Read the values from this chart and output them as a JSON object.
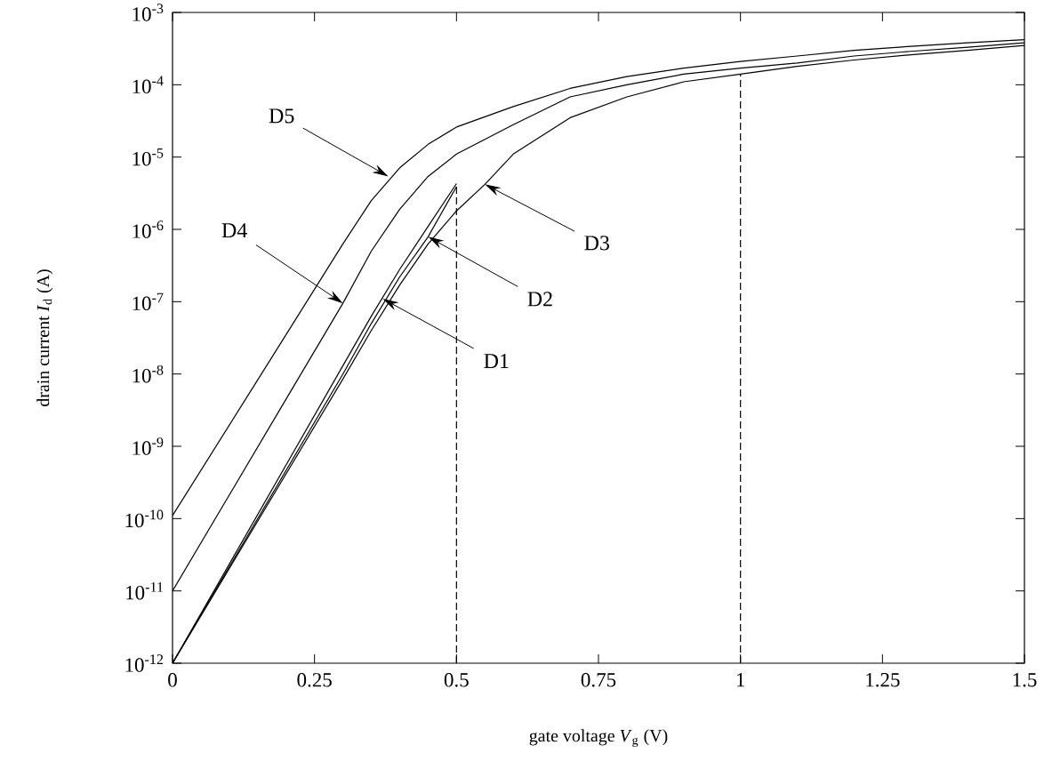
{
  "chart_data": {
    "type": "line",
    "xlabel": "gate voltage  *V*$_{g}$ (V)",
    "ylabel": "drain current  *I*$_{d}$ (A)",
    "log": "y",
    "xlim": [
      0,
      1.5
    ],
    "ylim": [
      1e-12,
      0.001
    ],
    "xticks": [
      0,
      0.25,
      0.5,
      0.75,
      1,
      1.25,
      1.5
    ],
    "yticks": [
      {
        "value": 1e-12,
        "label": "10$^{-12}$"
      },
      {
        "value": 1e-11,
        "label": "10$^{-11}$"
      },
      {
        "value": 1e-10,
        "label": "10$^{-10}$"
      },
      {
        "value": 1e-09,
        "label": "10$^{-9}$"
      },
      {
        "value": 1e-08,
        "label": "10$^{-8}$"
      },
      {
        "value": 1e-07,
        "label": "10$^{-7}$"
      },
      {
        "value": 1e-06,
        "label": "10$^{-6}$"
      },
      {
        "value": 1e-05,
        "label": "10$^{-5}$"
      },
      {
        "value": 0.0001,
        "label": "10$^{-4}$"
      },
      {
        "value": 0.001,
        "label": "10$^{-3}$"
      }
    ],
    "marker": "none",
    "line_style": "solid",
    "series": [
      {
        "color": "#000000",
        "x": [
          0,
          0.3,
          0.35,
          0.4,
          0.45,
          0.5
        ],
        "values": [
          1e-12,
          1.3e-08,
          6.3e-08,
          2.8e-07,
          1.1e-06,
          4.3e-06
        ]
      },
      {
        "color": "#000000",
        "x": [
          0,
          0.3,
          0.35,
          0.4,
          0.45,
          0.5
        ],
        "values": [
          1e-12,
          1e-08,
          5e-08,
          2.2e-07,
          7.9e-07,
          3.9e-06
        ]
      },
      {
        "color": "#000000",
        "x": [
          0,
          0.3,
          0.35,
          0.4,
          0.45,
          0.5,
          0.55,
          0.6,
          0.7,
          0.8,
          0.9,
          1.0,
          1.1,
          1.2,
          1.3,
          1.4,
          1.5
        ],
        "values": [
          1e-12,
          8.5e-09,
          4e-08,
          1.7e-07,
          6.3e-07,
          1.8e-06,
          4.2e-06,
          1.1e-05,
          3.5e-05,
          6.8e-05,
          0.00011,
          0.00014,
          0.00018,
          0.00022,
          0.00026,
          0.0003,
          0.00035
        ]
      },
      {
        "color": "#000000",
        "x": [
          0,
          0.2,
          0.3,
          0.35,
          0.4,
          0.45,
          0.5,
          0.6,
          0.7,
          0.8,
          0.9,
          1.0,
          1.1,
          1.2,
          1.3,
          1.4,
          1.5
        ],
        "values": [
          1e-11,
          4.5e-09,
          9.5e-08,
          5e-07,
          1.9e-06,
          5.4e-06,
          1.1e-05,
          2.8e-05,
          6.8e-05,
          0.0001,
          0.00014,
          0.00017,
          0.0002,
          0.00025,
          0.00029,
          0.00033,
          0.00038
        ]
      },
      {
        "color": "#000000",
        "x": [
          0,
          0.2,
          0.3,
          0.35,
          0.4,
          0.45,
          0.5,
          0.6,
          0.7,
          0.8,
          0.9,
          1.0,
          1.1,
          1.2,
          1.3,
          1.4,
          1.5
        ],
        "values": [
          1.1e-10,
          3.5e-08,
          6.3e-07,
          2.5e-06,
          7.1e-06,
          1.5e-05,
          2.6e-05,
          5e-05,
          8.9e-05,
          0.00013,
          0.00017,
          0.00021,
          0.00025,
          0.0003,
          0.00034,
          0.00038,
          0.00042
        ]
      }
    ],
    "ref_lines": [
      {
        "axis": "x",
        "value": 0.5,
        "color": "#000000",
        "line_style": "dashed"
      },
      {
        "axis": "x",
        "value": 1,
        "color": "#000000",
        "line_style": "dashed"
      }
    ],
    "annotations": [
      {
        "text": "D5",
        "x": 0.38,
        "y": 5.4e-06
      },
      {
        "text": "D4",
        "x": 0.3,
        "y": 9.5e-08
      },
      {
        "text": "D3",
        "x": 0.55,
        "y": 4.2e-06
      },
      {
        "text": "D2",
        "x": 0.45,
        "y": 7.9e-07
      },
      {
        "text": "D1",
        "x": 0.37,
        "y": 1.1e-07
      }
    ]
  }
}
